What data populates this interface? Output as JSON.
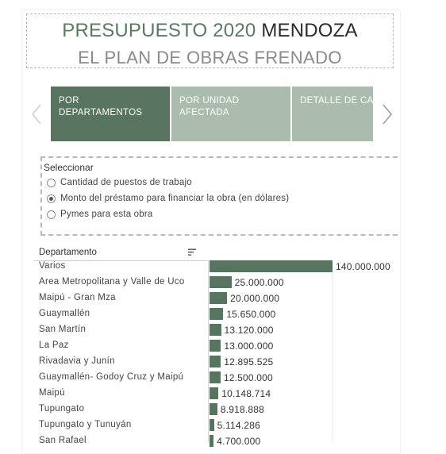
{
  "title": {
    "line1_green": "PRESUPUESTO 2020 ",
    "line1_dark": "MENDOZA",
    "line2": "EL PLAN DE OBRAS FRENADO"
  },
  "tabs": [
    {
      "label": "POR DEPARTAMENTOS",
      "active": true
    },
    {
      "label": "POR UNIDAD\nAFECTADA",
      "active": false
    },
    {
      "label": "DETALLE DE CADA\nOBRA",
      "active": false
    }
  ],
  "parameter": {
    "label": "Seleccionar",
    "options": [
      {
        "label": "Cantidad de puestos de trabajo",
        "selected": false
      },
      {
        "label": "Monto del préstamo para financiar la obra (en dólares)",
        "selected": true
      },
      {
        "label": "Pymes para esta obra",
        "selected": false
      }
    ]
  },
  "colors": {
    "bar": "#567460",
    "tab_active": "#567460",
    "tab_inactive": "#a9bcae",
    "title_green": "#5a7a63"
  },
  "icons": {
    "prev": "chevron-left-icon",
    "next": "chevron-right-icon",
    "sort": "sort-icon"
  },
  "chart_data": {
    "type": "bar",
    "orientation": "horizontal",
    "header": "Departamento",
    "categories": [
      "Varios",
      "Area Metropolitana y Valle de Uco",
      "Maipú - Gran Mza",
      "Guaymallén",
      "San Martín",
      "La Paz",
      "Rivadavia y Junín",
      "Guaymallén- Godoy Cruz y Maipú",
      "Maipú",
      "Tupungato",
      "Tupungato y Tunuyán",
      "San Rafael"
    ],
    "values": [
      140000000,
      25000000,
      20000000,
      15650000,
      13120000,
      13000000,
      12895525,
      12500000,
      10148714,
      8918888,
      5114286,
      4700000
    ],
    "labels": [
      "140.000.000",
      "25.000.000",
      "20.000.000",
      "15.650.000",
      "13.120.000",
      "13.000.000",
      "12.895.525",
      "12.500.000",
      "10.148.714",
      "8.918.888",
      "5.114.286",
      "4.700.000"
    ],
    "xlim": [
      0,
      140000000
    ]
  }
}
